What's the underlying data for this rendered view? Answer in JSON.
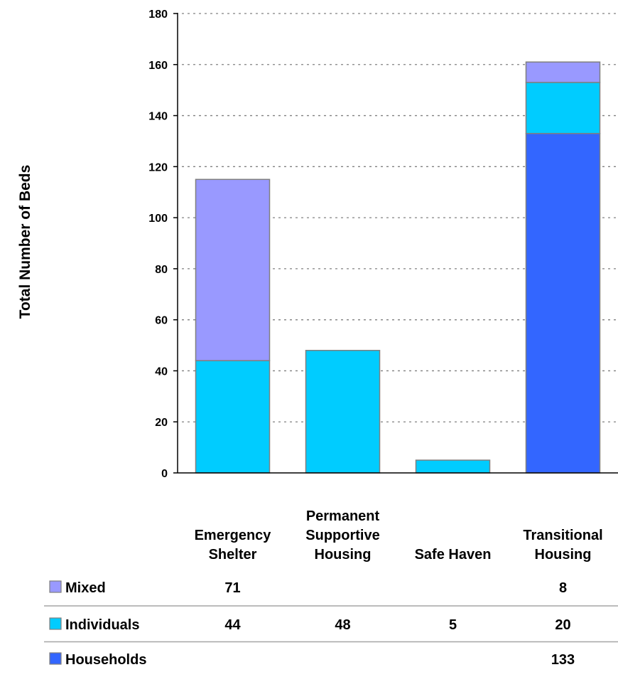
{
  "chart_data": {
    "type": "bar",
    "stacked": true,
    "categories": [
      [
        "Emergency",
        "Shelter"
      ],
      [
        "Permanent",
        "Supportive",
        "Housing"
      ],
      [
        "Safe Haven"
      ],
      [
        "Transitional",
        "Housing"
      ]
    ],
    "series": [
      {
        "name": "Households",
        "values": [
          null,
          null,
          null,
          133
        ],
        "color": "#3366ff"
      },
      {
        "name": "Individuals",
        "values": [
          44,
          48,
          5,
          20
        ],
        "color": "#00ccff"
      },
      {
        "name": "Mixed",
        "values": [
          71,
          null,
          null,
          8
        ],
        "color": "#9999ff"
      }
    ],
    "ylabel": "Total Number of Beds",
    "ylim": [
      0,
      180
    ],
    "yticks": [
      0,
      20,
      40,
      60,
      80,
      100,
      120,
      140,
      160,
      180
    ],
    "grid": "horizontal dotted",
    "legend": "data table below chart",
    "table_rows": [
      {
        "label": "Mixed",
        "cells": [
          "71",
          "",
          "",
          "8"
        ],
        "color": "#9999ff"
      },
      {
        "label": "Individuals",
        "cells": [
          "44",
          "48",
          "5",
          "20"
        ],
        "color": "#00ccff"
      },
      {
        "label": "Households",
        "cells": [
          "",
          "",
          "",
          "133"
        ],
        "color": "#3366ff"
      }
    ]
  }
}
